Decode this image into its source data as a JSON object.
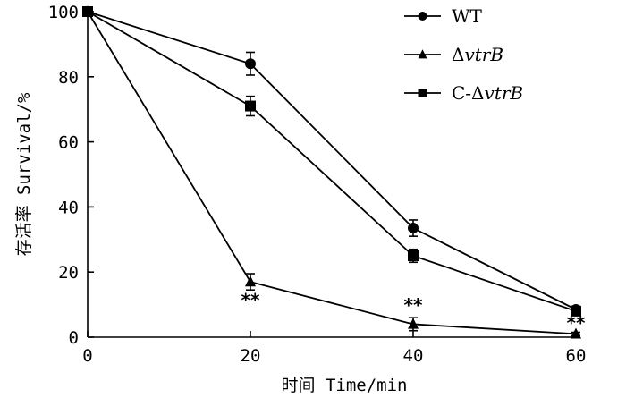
{
  "chart_data": {
    "type": "line",
    "x": [
      0,
      20,
      40,
      60
    ],
    "xlabel": "时间 Time/min",
    "ylabel": "存活率 Survival/%",
    "xlim": [
      0,
      60
    ],
    "ylim": [
      0,
      100
    ],
    "xticks": [
      0,
      20,
      40,
      60
    ],
    "yticks": [
      0,
      20,
      40,
      60,
      80,
      100
    ],
    "grid": false,
    "legend_position": "top-right",
    "series": [
      {
        "name": "WT",
        "name_prefix": "",
        "name_italic": "",
        "marker": "circle",
        "values": [
          100,
          84,
          33.5,
          8.5
        ],
        "errors": [
          0,
          3.5,
          2.5,
          1
        ]
      },
      {
        "name": "ΔvtrB",
        "name_prefix": "Δ",
        "name_italic": "vtrB",
        "marker": "triangle",
        "values": [
          100,
          17,
          4,
          1
        ],
        "errors": [
          0,
          2.5,
          2,
          0.5
        ]
      },
      {
        "name": "C-ΔvtrB",
        "name_prefix": "C-Δ",
        "name_italic": "vtrB",
        "marker": "square",
        "values": [
          100,
          71,
          25,
          8
        ],
        "errors": [
          0,
          3,
          2,
          1
        ]
      }
    ],
    "annotations": [
      {
        "x": 20,
        "y": 9.5,
        "text": "**"
      },
      {
        "x": 40,
        "y": 8,
        "text": "**"
      },
      {
        "x": 60,
        "y": 2.5,
        "text": "**"
      }
    ]
  }
}
